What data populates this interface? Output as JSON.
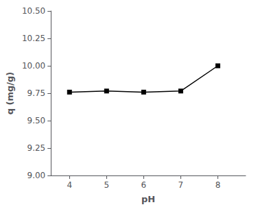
{
  "chart_data": {
    "type": "line",
    "x": [
      4,
      5,
      6,
      7,
      8
    ],
    "values": [
      9.76,
      9.77,
      9.76,
      9.77,
      10.0
    ],
    "xlabel": "pH",
    "ylabel": "q (mg/g)",
    "xlim": [
      3.5,
      8.75
    ],
    "ylim": [
      9.0,
      10.5
    ],
    "xticks": [
      4,
      5,
      6,
      7,
      8
    ],
    "yticks": [
      {
        "value": 9.0,
        "label": "9.00"
      },
      9.25,
      {
        "value": 9.5,
        "label": "9.50"
      },
      9.75,
      {
        "value": 10.0,
        "label": "10.00"
      },
      10.25,
      {
        "value": 10.5,
        "label": "10.50"
      }
    ],
    "color": "#000000",
    "marker": "square",
    "grid": false
  }
}
